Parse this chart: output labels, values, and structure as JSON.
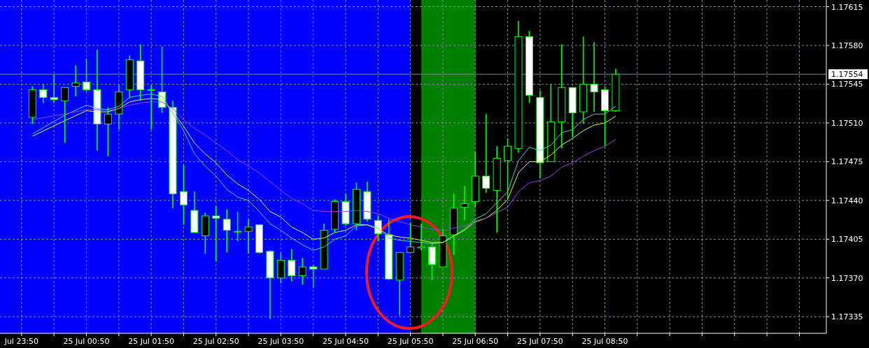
{
  "chart_data": {
    "type": "candlestick",
    "x": [
      "--07-25T00:00",
      "--07-25T00:10",
      "--07-25T00:20",
      "--07-25T00:30",
      "--07-25T00:40",
      "--07-25T00:50",
      "--07-25T01:00",
      "--07-25T01:10",
      "--07-25T01:20",
      "--07-25T01:30",
      "--07-25T01:40",
      "--07-25T01:50",
      "--07-25T02:00",
      "--07-25T02:10",
      "--07-25T02:20",
      "--07-25T02:30",
      "--07-25T02:40",
      "--07-25T02:50",
      "--07-25T03:00",
      "--07-25T03:10",
      "--07-25T03:20",
      "--07-25T03:30",
      "--07-25T03:40",
      "--07-25T03:50",
      "--07-25T04:00",
      "--07-25T04:10",
      "--07-25T04:20",
      "--07-25T04:30",
      "--07-25T04:40",
      "--07-25T04:50",
      "--07-25T05:00",
      "--07-25T05:10",
      "--07-25T05:20",
      "--07-25T05:30",
      "--07-25T05:40",
      "--07-25T05:50",
      "--07-25T06:00",
      "--07-25T06:10",
      "--07-25T06:20",
      "--07-25T06:30",
      "--07-25T06:40",
      "--07-25T06:50",
      "--07-25T07:00",
      "--07-25T07:10",
      "--07-25T07:20",
      "--07-25T07:30",
      "--07-25T07:40",
      "--07-25T07:50",
      "--07-25T08:00",
      "--07-25T08:10",
      "--07-25T08:20",
      "--07-25T08:30",
      "--07-25T08:40",
      "--07-25T08:50",
      "--07-25T09:00"
    ],
    "ohlc": [
      [
        1.17515,
        1.17543,
        1.17509,
        1.1754
      ],
      [
        1.1754,
        1.17545,
        1.17528,
        1.17533
      ],
      [
        1.17533,
        1.17554,
        1.17528,
        1.17531
      ],
      [
        1.1753,
        1.17542,
        1.17492,
        1.17542
      ],
      [
        1.17543,
        1.17562,
        1.17534,
        1.17546
      ],
      [
        1.17547,
        1.17568,
        1.17538,
        1.1754
      ],
      [
        1.1754,
        1.17576,
        1.17485,
        1.17509
      ],
      [
        1.17509,
        1.17524,
        1.1748,
        1.17518
      ],
      [
        1.17518,
        1.17544,
        1.17504,
        1.17538
      ],
      [
        1.1754,
        1.17571,
        1.17532,
        1.17567
      ],
      [
        1.17566,
        1.17581,
        1.1753,
        1.1754
      ],
      [
        1.1754,
        1.17544,
        1.17504,
        1.1754
      ],
      [
        1.17538,
        1.17579,
        1.17519,
        1.17524
      ],
      [
        1.17524,
        1.1753,
        1.17433,
        1.17446
      ],
      [
        1.17448,
        1.17472,
        1.17418,
        1.17436
      ],
      [
        1.17431,
        1.17448,
        1.17411,
        1.17411
      ],
      [
        1.17408,
        1.17429,
        1.17392,
        1.17426
      ],
      [
        1.17426,
        1.17435,
        1.17385,
        1.17424
      ],
      [
        1.17423,
        1.17432,
        1.17393,
        1.17413
      ],
      [
        1.17412,
        1.1743,
        1.17403,
        1.17412
      ],
      [
        1.17412,
        1.17423,
        1.17392,
        1.17416
      ],
      [
        1.17418,
        1.17418,
        1.17392,
        1.17393
      ],
      [
        1.17394,
        1.17395,
        1.17333,
        1.1737
      ],
      [
        1.1737,
        1.17393,
        1.17365,
        1.17386
      ],
      [
        1.17386,
        1.17396,
        1.17367,
        1.17372
      ],
      [
        1.17372,
        1.17388,
        1.17364,
        1.1738
      ],
      [
        1.1738,
        1.17382,
        1.17361,
        1.17378
      ],
      [
        1.17378,
        1.17419,
        1.17378,
        1.17413
      ],
      [
        1.17414,
        1.17441,
        1.17411,
        1.17439
      ],
      [
        1.17439,
        1.17446,
        1.17417,
        1.17419
      ],
      [
        1.17419,
        1.17456,
        1.17413,
        1.1745
      ],
      [
        1.17448,
        1.17457,
        1.17421,
        1.17423
      ],
      [
        1.17422,
        1.17426,
        1.17403,
        1.1741
      ],
      [
        1.17409,
        1.17423,
        1.17368,
        1.17369
      ],
      [
        1.17368,
        1.17393,
        1.17336,
        1.17393
      ],
      [
        1.17393,
        1.1742,
        1.17393,
        1.17398
      ],
      [
        1.17397,
        1.17419,
        1.17395,
        1.17398
      ],
      [
        1.17398,
        1.17402,
        1.17368,
        1.17382
      ],
      [
        1.1738,
        1.17414,
        1.1738,
        1.17408
      ],
      [
        1.17409,
        1.17446,
        1.17391,
        1.17433
      ],
      [
        1.17434,
        1.17453,
        1.17422,
        1.17437
      ],
      [
        1.17439,
        1.17484,
        1.17434,
        1.17462
      ],
      [
        1.17462,
        1.17518,
        1.17447,
        1.17451
      ],
      [
        1.17449,
        1.17489,
        1.17411,
        1.17478
      ],
      [
        1.17476,
        1.17496,
        1.17441,
        1.17489
      ],
      [
        1.17487,
        1.17602,
        1.17483,
        1.17588
      ],
      [
        1.17588,
        1.17593,
        1.17528,
        1.17535
      ],
      [
        1.17533,
        1.17539,
        1.1746,
        1.17474
      ],
      [
        1.17475,
        1.17545,
        1.17475,
        1.17511
      ],
      [
        1.17511,
        1.17581,
        1.17487,
        1.17542
      ],
      [
        1.17542,
        1.17542,
        1.17497,
        1.17519
      ],
      [
        1.1752,
        1.17588,
        1.17509,
        1.17545
      ],
      [
        1.17545,
        1.17583,
        1.1752,
        1.17538
      ],
      [
        1.1754,
        1.17543,
        1.17489,
        1.17521
      ],
      [
        1.17521,
        1.17559,
        1.1752,
        1.17554
      ]
    ],
    "series": [
      {
        "type": "line",
        "color": "#48d1cc",
        "x": [
          "--07-25T00:00",
          "--07-25T00:30",
          "--07-25T00:50",
          "--07-25T01:00",
          "--07-25T01:10",
          "--07-25T01:20",
          "--07-25T01:30",
          "--07-25T01:40",
          "--07-25T01:50",
          "--07-25T02:00",
          "--07-25T02:10",
          "--07-25T02:20",
          "--07-25T02:30",
          "--07-25T02:40",
          "--07-25T02:50",
          "--07-25T03:00",
          "--07-25T03:10",
          "--07-25T03:20",
          "--07-25T03:30",
          "--07-25T03:40",
          "--07-25T03:50",
          "--07-25T04:00",
          "--07-25T04:10",
          "--07-25T04:20",
          "--07-25T04:30",
          "--07-25T04:40",
          "--07-25T04:50",
          "--07-25T05:00",
          "--07-25T05:10",
          "--07-25T05:20",
          "--07-25T05:30",
          "--07-25T05:40",
          "--07-25T05:50",
          "--07-25T06:00",
          "--07-25T06:10",
          "--07-25T06:20",
          "--07-25T06:30",
          "--07-25T06:40",
          "--07-25T06:50",
          "--07-25T07:00",
          "--07-25T07:10",
          "--07-25T07:20",
          "--07-25T07:30",
          "--07-25T07:40",
          "--07-25T07:50",
          "--07-25T08:00",
          "--07-25T08:10",
          "--07-25T08:20",
          "--07-25T08:30",
          "--07-25T08:40",
          "--07-25T08:50",
          "--07-25T09:00"
        ],
        "values": [
          1.175,
          1.17517,
          1.17526,
          1.17523,
          1.17522,
          1.17525,
          1.17533,
          1.17535,
          1.17536,
          1.17534,
          1.17519,
          1.17503,
          1.17482,
          1.17471,
          1.17462,
          1.1745,
          1.17443,
          1.1744,
          1.1743,
          1.17419,
          1.17413,
          1.17406,
          1.174,
          1.17395,
          1.17398,
          1.17405,
          1.17408,
          1.17417,
          1.17418,
          1.17415,
          1.17406,
          1.17404,
          1.17403,
          1.17402,
          1.17401,
          1.17402,
          1.17408,
          1.17414,
          1.17423,
          1.17428,
          1.17438,
          1.17448,
          1.17476,
          1.17488,
          1.17485,
          1.1749,
          1.17501,
          1.17504,
          1.17513,
          1.17518,
          1.17518,
          1.17525
        ]
      },
      {
        "type": "line",
        "color": "#d4ff3c",
        "x": [
          "--07-25T00:00",
          "--07-25T00:30",
          "--07-25T00:50",
          "--07-25T01:00",
          "--07-25T01:10",
          "--07-25T01:20",
          "--07-25T01:30",
          "--07-25T01:40",
          "--07-25T01:50",
          "--07-25T02:00",
          "--07-25T02:10",
          "--07-25T02:20",
          "--07-25T02:30",
          "--07-25T02:40",
          "--07-25T02:50",
          "--07-25T03:00",
          "--07-25T03:10",
          "--07-25T03:20",
          "--07-25T03:30",
          "--07-25T03:40",
          "--07-25T03:50",
          "--07-25T04:00",
          "--07-25T04:10",
          "--07-25T04:20",
          "--07-25T04:30",
          "--07-25T04:40",
          "--07-25T04:50",
          "--07-25T05:00",
          "--07-25T05:10",
          "--07-25T05:20",
          "--07-25T05:30",
          "--07-25T05:40",
          "--07-25T05:50",
          "--07-25T06:00",
          "--07-25T06:10",
          "--07-25T06:20",
          "--07-25T06:30",
          "--07-25T06:40",
          "--07-25T06:50",
          "--07-25T07:00",
          "--07-25T07:10",
          "--07-25T07:20",
          "--07-25T07:30",
          "--07-25T07:40",
          "--07-25T07:50",
          "--07-25T08:00",
          "--07-25T08:10",
          "--07-25T08:20",
          "--07-25T08:30",
          "--07-25T08:40",
          "--07-25T08:50",
          "--07-25T09:00"
        ],
        "values": [
          1.17498,
          1.17512,
          1.17521,
          1.1752,
          1.1752,
          1.17523,
          1.17529,
          1.17531,
          1.17532,
          1.17531,
          1.1752,
          1.17507,
          1.17492,
          1.17482,
          1.17474,
          1.17463,
          1.17455,
          1.17449,
          1.17441,
          1.1743,
          1.17425,
          1.17416,
          1.17411,
          1.17405,
          1.17406,
          1.17411,
          1.17413,
          1.17418,
          1.17418,
          1.17414,
          1.17409,
          1.17407,
          1.17406,
          1.17404,
          1.17402,
          1.17402,
          1.17408,
          1.17413,
          1.17421,
          1.17424,
          1.17431,
          1.17441,
          1.17465,
          1.17475,
          1.17475,
          1.17481,
          1.1749,
          1.17496,
          1.17503,
          1.17508,
          1.1751,
          1.17516
        ]
      },
      {
        "type": "line",
        "color": "#9b3ee0",
        "x": [
          "--07-25T00:00",
          "--07-25T00:30",
          "--07-25T00:50",
          "--07-25T01:00",
          "--07-25T01:10",
          "--07-25T01:20",
          "--07-25T01:30",
          "--07-25T01:40",
          "--07-25T01:50",
          "--07-25T02:00",
          "--07-25T02:10",
          "--07-25T02:20",
          "--07-25T02:30",
          "--07-25T02:40",
          "--07-25T02:50",
          "--07-25T03:00",
          "--07-25T03:10",
          "--07-25T03:20",
          "--07-25T03:30",
          "--07-25T03:40",
          "--07-25T03:50",
          "--07-25T04:00",
          "--07-25T04:10",
          "--07-25T04:20",
          "--07-25T04:30",
          "--07-25T04:40",
          "--07-25T04:50",
          "--07-25T05:00",
          "--07-25T05:10",
          "--07-25T05:20",
          "--07-25T05:30",
          "--07-25T05:40",
          "--07-25T05:50",
          "--07-25T06:00",
          "--07-25T06:10",
          "--07-25T06:20",
          "--07-25T06:30",
          "--07-25T06:40",
          "--07-25T06:50",
          "--07-25T07:00",
          "--07-25T07:10",
          "--07-25T07:20",
          "--07-25T07:30",
          "--07-25T07:40",
          "--07-25T07:50",
          "--07-25T08:00",
          "--07-25T08:10",
          "--07-25T08:20",
          "--07-25T08:30",
          "--07-25T08:40",
          "--07-25T08:50",
          "--07-25T09:00"
        ],
        "values": [
          1.17513,
          1.17518,
          1.17522,
          1.17522,
          1.17521,
          1.17523,
          1.17526,
          1.17528,
          1.17529,
          1.17529,
          1.17523,
          1.17513,
          1.17505,
          1.17499,
          1.17492,
          1.17485,
          1.17477,
          1.17471,
          1.17465,
          1.17457,
          1.17449,
          1.17442,
          1.17437,
          1.17431,
          1.1743,
          1.1743,
          1.1743,
          1.17431,
          1.1743,
          1.17428,
          1.17424,
          1.17421,
          1.17418,
          1.17416,
          1.17414,
          1.17413,
          1.17415,
          1.17417,
          1.1742,
          1.17424,
          1.17429,
          1.17434,
          1.17448,
          1.17456,
          1.17458,
          1.17462,
          1.1747,
          1.17474,
          1.1748,
          1.17485,
          1.17489,
          1.17495
        ]
      }
    ],
    "xlim": [
      "--07-24T23:30",
      "--07-25T12:15"
    ],
    "ylim": [
      1.1732,
      1.17621
    ],
    "xticks": [
      {
        "value": "--07-24T23:50",
        "label": "Jul 23:50"
      },
      {
        "value": "--07-25T00:20",
        "label": null
      },
      {
        "value": "--07-25T00:50",
        "label": "25 Jul 00:50"
      },
      {
        "value": "--07-25T01:20",
        "label": null
      },
      {
        "value": "--07-25T01:50",
        "label": "25 Jul 01:50"
      },
      {
        "value": "--07-25T02:20",
        "label": null
      },
      {
        "value": "--07-25T02:50",
        "label": "25 Jul 02:50"
      },
      {
        "value": "--07-25T03:20",
        "label": null
      },
      {
        "value": "--07-25T03:50",
        "label": "25 Jul 03:50"
      },
      {
        "value": "--07-25T04:20",
        "label": null
      },
      {
        "value": "--07-25T04:50",
        "label": "25 Jul 04:50"
      },
      {
        "value": "--07-25T05:20",
        "label": null
      },
      {
        "value": "--07-25T05:50",
        "label": "25 Jul 05:50"
      },
      {
        "value": "--07-25T06:20",
        "label": null
      },
      {
        "value": "--07-25T06:50",
        "label": "25 Jul 06:50"
      },
      {
        "value": "--07-25T07:20",
        "label": null
      },
      {
        "value": "--07-25T07:50",
        "label": "25 Jul 07:50"
      },
      {
        "value": "--07-25T08:20",
        "label": null
      },
      {
        "value": "--07-25T08:50",
        "label": "25 Jul 08:50"
      },
      {
        "value": "--07-25T09:20",
        "label": null
      },
      {
        "value": "--07-25T09:50",
        "label": null
      },
      {
        "value": "--07-25T10:20",
        "label": null
      },
      {
        "value": "--07-25T10:50",
        "label": null
      },
      {
        "value": "--07-25T11:20",
        "label": null
      },
      {
        "value": "--07-25T11:50",
        "label": null
      }
    ],
    "yticks": [
      {
        "value": 1.17335,
        "label": "1.17335"
      },
      {
        "value": 1.1737,
        "label": "1.17370"
      },
      {
        "value": 1.17405,
        "label": "1.17405"
      },
      {
        "value": 1.1744,
        "label": "1.17440"
      },
      {
        "value": 1.17475,
        "label": "1.17475"
      },
      {
        "value": 1.1751,
        "label": "1.17510"
      },
      {
        "value": 1.17545,
        "label": "1.17545"
      },
      {
        "value": 1.1758,
        "label": "1.17580"
      },
      {
        "value": 1.17615,
        "label": "1.17615"
      }
    ],
    "bands": [
      {
        "axis": "x",
        "from": "--07-24T23:30",
        "to": "--07-25T05:50",
        "color": "#0000ff"
      },
      {
        "axis": "x",
        "from": "--07-25T06:00",
        "to": "--07-25T06:50",
        "color": "#008000"
      }
    ],
    "ref_lines": [
      {
        "axis": "y",
        "value": 1.17554,
        "label": "1.17554",
        "color": "#778899"
      }
    ],
    "grid": true
  }
}
